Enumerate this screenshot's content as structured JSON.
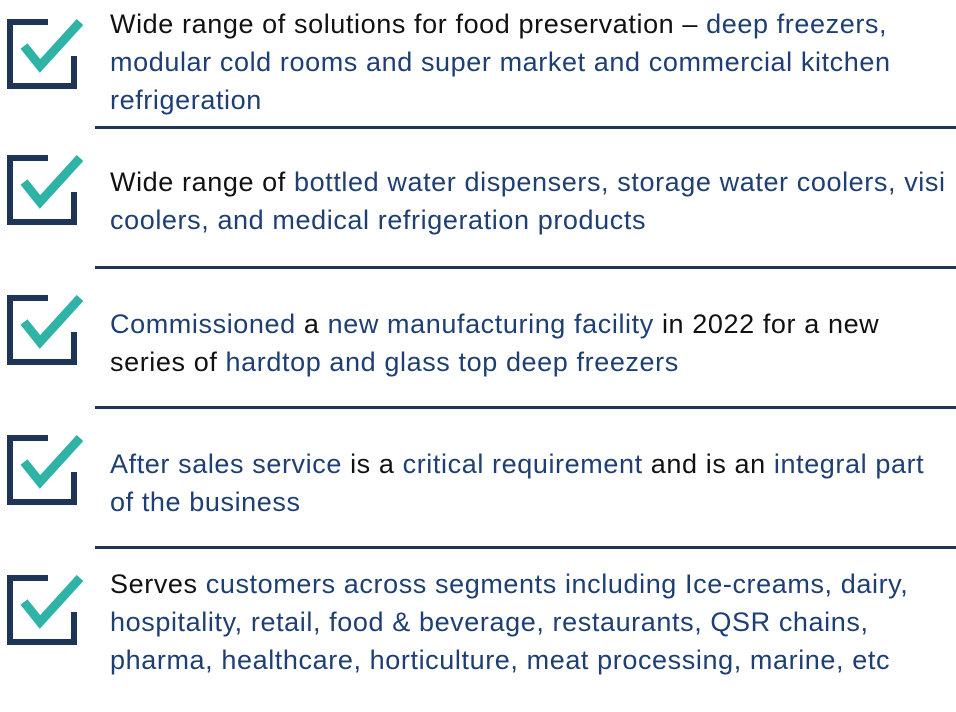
{
  "colors": {
    "plain": "#111111",
    "accent": "#1e3f73",
    "rule": "#1e3556",
    "check": "#2fb3a6"
  },
  "items": [
    {
      "segments": [
        {
          "text": "Wide range of solutions for food preservation – ",
          "color": "plain"
        },
        {
          "text": "deep freezers, modular cold rooms and super market and commercial kitchen refrigeration",
          "color": "accent"
        }
      ]
    },
    {
      "segments": [
        {
          "text": "Wide range of ",
          "color": "plain"
        },
        {
          "text": "bottled water dispensers, storage water coolers, visi coolers, and medical refrigeration products",
          "color": "accent"
        }
      ]
    },
    {
      "segments": [
        {
          "text": "Commissioned",
          "color": "accent"
        },
        {
          "text": " a ",
          "color": "plain"
        },
        {
          "text": "new manufacturing facility",
          "color": "accent"
        },
        {
          "text": " in 2022 for a new series of ",
          "color": "plain"
        },
        {
          "text": "hardtop and glass top deep freezers",
          "color": "accent"
        }
      ]
    },
    {
      "segments": [
        {
          "text": "After sales service",
          "color": "accent"
        },
        {
          "text": " is a ",
          "color": "plain"
        },
        {
          "text": "critical requirement",
          "color": "accent"
        },
        {
          "text": " and is an ",
          "color": "plain"
        },
        {
          "text": "integral part of the business",
          "color": "accent"
        }
      ]
    },
    {
      "segments": [
        {
          "text": "Serves ",
          "color": "plain"
        },
        {
          "text": "customers across segments including Ice-creams, dairy, hospitality, retail, food & beverage, restaurants, QSR chains, pharma, healthcare, horticulture, meat processing, marine, etc",
          "color": "accent"
        }
      ]
    }
  ]
}
